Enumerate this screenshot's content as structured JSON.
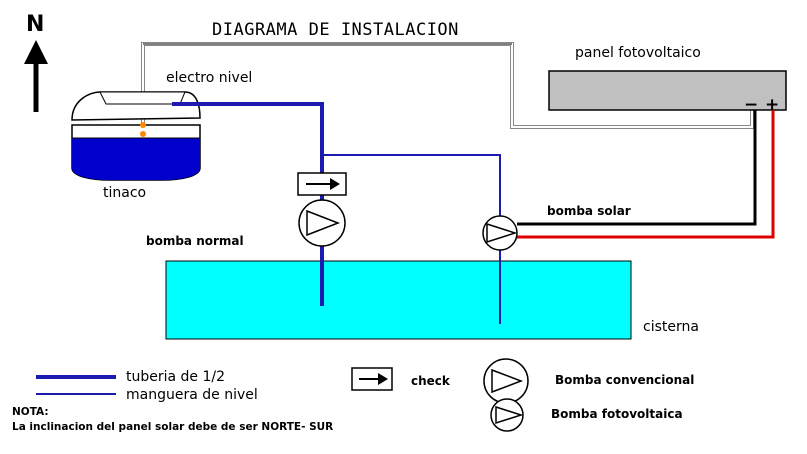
{
  "title": "DIAGRAMA DE INSTALACION",
  "compass": {
    "letter": "N"
  },
  "labels": {
    "panel": "panel fotovoltaico",
    "electro_nivel": "electro nivel",
    "tinaco": "tinaco",
    "bomba_solar": "bomba solar",
    "bomba_normal": "bomba normal",
    "cisterna": "cisterna",
    "panel_minus": "−",
    "panel_plus": "+"
  },
  "legend": {
    "tuberia": "tuberia de 1/2",
    "manguera": "manguera de nivel",
    "check": "check",
    "bomba_convencional": "Bomba convencional",
    "bomba_fotovoltaica": "Bomba fotovoltaica"
  },
  "nota": {
    "heading": "NOTA:",
    "text": "La inclinacion del panel solar debe de ser NORTE- SUR"
  },
  "colors": {
    "pipe": "#1b1bb0",
    "water": "#00ffff",
    "tank_water": "#0000cc",
    "panel": "#c0c0c0",
    "wire_red": "#dd0000",
    "wire_black": "#000000"
  }
}
